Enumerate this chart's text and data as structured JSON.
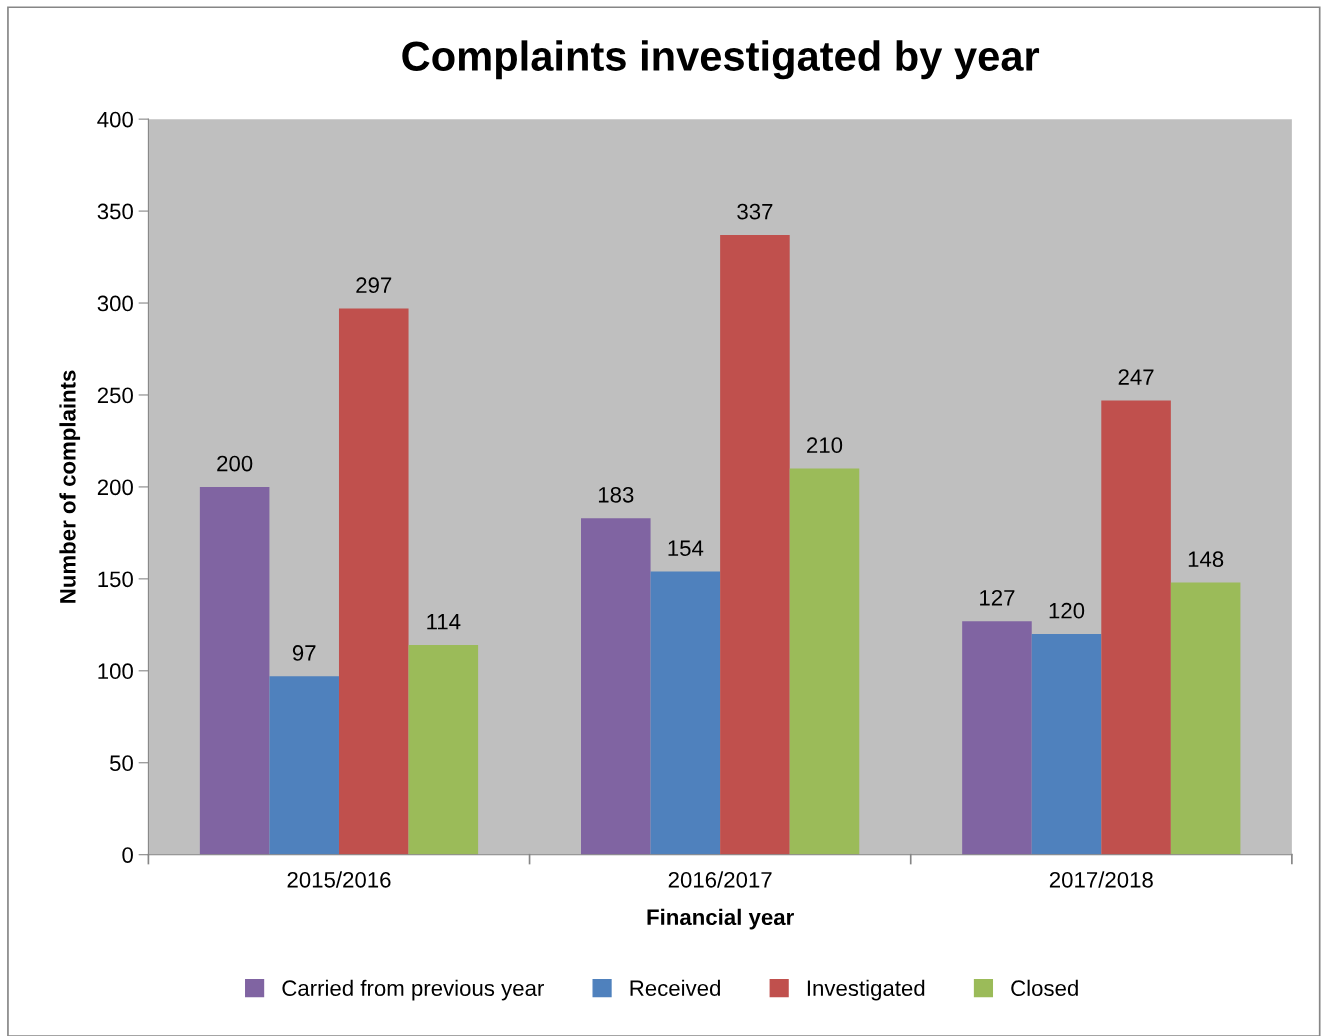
{
  "chart_data": {
    "type": "bar",
    "title": "Complaints investigated by year",
    "xlabel": "Financial year",
    "ylabel": "Number of complaints",
    "categories": [
      "2015/2016",
      "2016/2017",
      "2017/2018"
    ],
    "series": [
      {
        "name": "Carried from previous year",
        "color": "#8064a2",
        "values": [
          200,
          183,
          127
        ]
      },
      {
        "name": "Received",
        "color": "#4f81bd",
        "values": [
          97,
          154,
          120
        ]
      },
      {
        "name": "Investigated",
        "color": "#c0504d",
        "values": [
          297,
          337,
          247
        ]
      },
      {
        "name": "Closed",
        "color": "#9bbb59",
        "values": [
          114,
          210,
          148
        ]
      }
    ],
    "ylim": [
      0,
      400
    ],
    "yticks": [
      0,
      50,
      100,
      150,
      200,
      250,
      300,
      350,
      400
    ],
    "data_labels": true,
    "grid": false,
    "legend": "bottom"
  }
}
